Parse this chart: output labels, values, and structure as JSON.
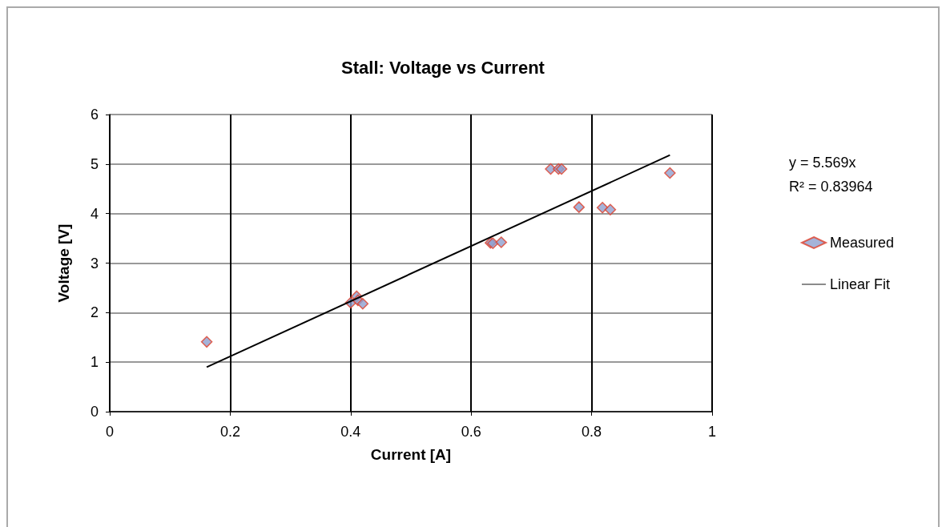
{
  "chart_data": {
    "type": "scatter",
    "title": "Stall: Voltage vs Current",
    "xlabel": "Current [A]",
    "ylabel": "Voltage [V]",
    "xlim": [
      0,
      1
    ],
    "xticks": [
      0,
      0.2,
      0.4,
      0.6,
      0.8,
      1
    ],
    "ylim": [
      0,
      6
    ],
    "yticks": [
      0,
      1,
      2,
      3,
      4,
      5,
      6
    ],
    "grid": true,
    "legend": "right",
    "marker": "diamond",
    "annotations": [
      "y = 5.569x",
      "R² = 0.83964"
    ],
    "series": [
      {
        "name": "Measured",
        "color": "#8ea0d0",
        "x": [
          0.161,
          0.4,
          0.41,
          0.412,
          0.42,
          0.632,
          0.636,
          0.65,
          0.732,
          0.745,
          0.75,
          0.779,
          0.818,
          0.831,
          0.93
        ],
        "values": [
          1.41,
          2.2,
          2.33,
          2.25,
          2.18,
          3.41,
          3.4,
          3.42,
          4.9,
          4.9,
          4.9,
          4.13,
          4.12,
          4.08,
          4.82
        ]
      },
      {
        "name": "Linear Fit",
        "type": "line",
        "color": "#000000",
        "marker": "none",
        "x": [
          0.161,
          0.93
        ],
        "values": [
          0.9,
          5.18
        ]
      }
    ]
  }
}
